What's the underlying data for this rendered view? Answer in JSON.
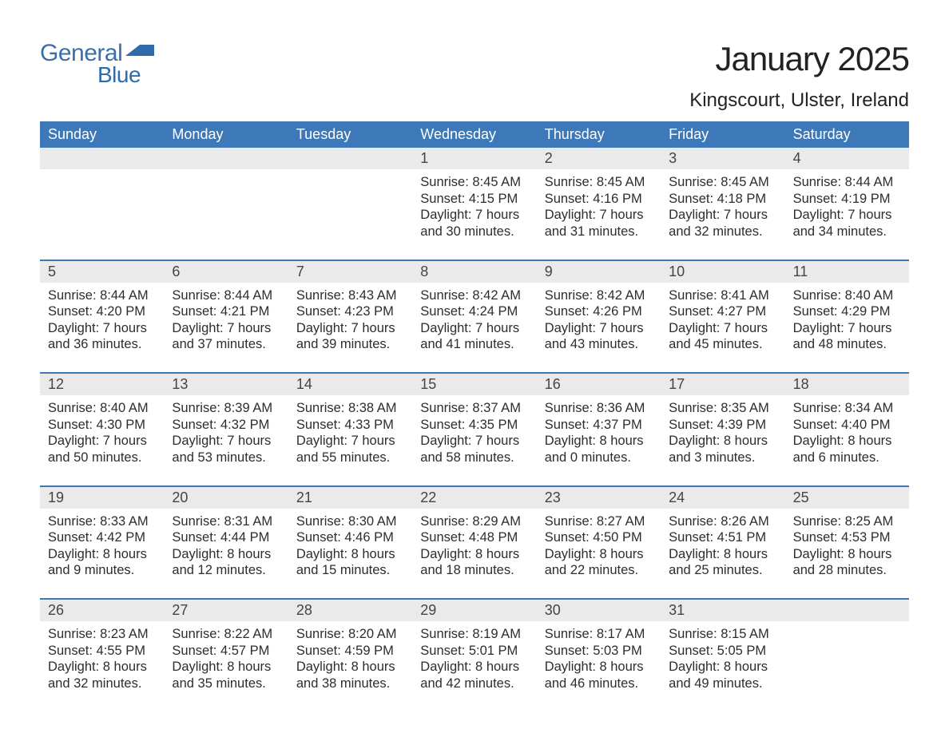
{
  "brand": {
    "word1": "General",
    "word2": "Blue"
  },
  "title": "January 2025",
  "location": "Kingscourt, Ulster, Ireland",
  "colors": {
    "header_bg": "#3d78b8",
    "divider": "#3d78b8",
    "date_row_bg": "#eaeaea",
    "text": "#2d2d2d",
    "brand_color": "#2f6aab"
  },
  "day_names": [
    "Sunday",
    "Monday",
    "Tuesday",
    "Wednesday",
    "Thursday",
    "Friday",
    "Saturday"
  ],
  "weeks": [
    [
      null,
      null,
      null,
      {
        "date": "1",
        "sunrise": "Sunrise: 8:45 AM",
        "sunset": "Sunset: 4:15 PM",
        "dl1": "Daylight: 7 hours",
        "dl2": "and 30 minutes."
      },
      {
        "date": "2",
        "sunrise": "Sunrise: 8:45 AM",
        "sunset": "Sunset: 4:16 PM",
        "dl1": "Daylight: 7 hours",
        "dl2": "and 31 minutes."
      },
      {
        "date": "3",
        "sunrise": "Sunrise: 8:45 AM",
        "sunset": "Sunset: 4:18 PM",
        "dl1": "Daylight: 7 hours",
        "dl2": "and 32 minutes."
      },
      {
        "date": "4",
        "sunrise": "Sunrise: 8:44 AM",
        "sunset": "Sunset: 4:19 PM",
        "dl1": "Daylight: 7 hours",
        "dl2": "and 34 minutes."
      }
    ],
    [
      {
        "date": "5",
        "sunrise": "Sunrise: 8:44 AM",
        "sunset": "Sunset: 4:20 PM",
        "dl1": "Daylight: 7 hours",
        "dl2": "and 36 minutes."
      },
      {
        "date": "6",
        "sunrise": "Sunrise: 8:44 AM",
        "sunset": "Sunset: 4:21 PM",
        "dl1": "Daylight: 7 hours",
        "dl2": "and 37 minutes."
      },
      {
        "date": "7",
        "sunrise": "Sunrise: 8:43 AM",
        "sunset": "Sunset: 4:23 PM",
        "dl1": "Daylight: 7 hours",
        "dl2": "and 39 minutes."
      },
      {
        "date": "8",
        "sunrise": "Sunrise: 8:42 AM",
        "sunset": "Sunset: 4:24 PM",
        "dl1": "Daylight: 7 hours",
        "dl2": "and 41 minutes."
      },
      {
        "date": "9",
        "sunrise": "Sunrise: 8:42 AM",
        "sunset": "Sunset: 4:26 PM",
        "dl1": "Daylight: 7 hours",
        "dl2": "and 43 minutes."
      },
      {
        "date": "10",
        "sunrise": "Sunrise: 8:41 AM",
        "sunset": "Sunset: 4:27 PM",
        "dl1": "Daylight: 7 hours",
        "dl2": "and 45 minutes."
      },
      {
        "date": "11",
        "sunrise": "Sunrise: 8:40 AM",
        "sunset": "Sunset: 4:29 PM",
        "dl1": "Daylight: 7 hours",
        "dl2": "and 48 minutes."
      }
    ],
    [
      {
        "date": "12",
        "sunrise": "Sunrise: 8:40 AM",
        "sunset": "Sunset: 4:30 PM",
        "dl1": "Daylight: 7 hours",
        "dl2": "and 50 minutes."
      },
      {
        "date": "13",
        "sunrise": "Sunrise: 8:39 AM",
        "sunset": "Sunset: 4:32 PM",
        "dl1": "Daylight: 7 hours",
        "dl2": "and 53 minutes."
      },
      {
        "date": "14",
        "sunrise": "Sunrise: 8:38 AM",
        "sunset": "Sunset: 4:33 PM",
        "dl1": "Daylight: 7 hours",
        "dl2": "and 55 minutes."
      },
      {
        "date": "15",
        "sunrise": "Sunrise: 8:37 AM",
        "sunset": "Sunset: 4:35 PM",
        "dl1": "Daylight: 7 hours",
        "dl2": "and 58 minutes."
      },
      {
        "date": "16",
        "sunrise": "Sunrise: 8:36 AM",
        "sunset": "Sunset: 4:37 PM",
        "dl1": "Daylight: 8 hours",
        "dl2": "and 0 minutes."
      },
      {
        "date": "17",
        "sunrise": "Sunrise: 8:35 AM",
        "sunset": "Sunset: 4:39 PM",
        "dl1": "Daylight: 8 hours",
        "dl2": "and 3 minutes."
      },
      {
        "date": "18",
        "sunrise": "Sunrise: 8:34 AM",
        "sunset": "Sunset: 4:40 PM",
        "dl1": "Daylight: 8 hours",
        "dl2": "and 6 minutes."
      }
    ],
    [
      {
        "date": "19",
        "sunrise": "Sunrise: 8:33 AM",
        "sunset": "Sunset: 4:42 PM",
        "dl1": "Daylight: 8 hours",
        "dl2": "and 9 minutes."
      },
      {
        "date": "20",
        "sunrise": "Sunrise: 8:31 AM",
        "sunset": "Sunset: 4:44 PM",
        "dl1": "Daylight: 8 hours",
        "dl2": "and 12 minutes."
      },
      {
        "date": "21",
        "sunrise": "Sunrise: 8:30 AM",
        "sunset": "Sunset: 4:46 PM",
        "dl1": "Daylight: 8 hours",
        "dl2": "and 15 minutes."
      },
      {
        "date": "22",
        "sunrise": "Sunrise: 8:29 AM",
        "sunset": "Sunset: 4:48 PM",
        "dl1": "Daylight: 8 hours",
        "dl2": "and 18 minutes."
      },
      {
        "date": "23",
        "sunrise": "Sunrise: 8:27 AM",
        "sunset": "Sunset: 4:50 PM",
        "dl1": "Daylight: 8 hours",
        "dl2": "and 22 minutes."
      },
      {
        "date": "24",
        "sunrise": "Sunrise: 8:26 AM",
        "sunset": "Sunset: 4:51 PM",
        "dl1": "Daylight: 8 hours",
        "dl2": "and 25 minutes."
      },
      {
        "date": "25",
        "sunrise": "Sunrise: 8:25 AM",
        "sunset": "Sunset: 4:53 PM",
        "dl1": "Daylight: 8 hours",
        "dl2": "and 28 minutes."
      }
    ],
    [
      {
        "date": "26",
        "sunrise": "Sunrise: 8:23 AM",
        "sunset": "Sunset: 4:55 PM",
        "dl1": "Daylight: 8 hours",
        "dl2": "and 32 minutes."
      },
      {
        "date": "27",
        "sunrise": "Sunrise: 8:22 AM",
        "sunset": "Sunset: 4:57 PM",
        "dl1": "Daylight: 8 hours",
        "dl2": "and 35 minutes."
      },
      {
        "date": "28",
        "sunrise": "Sunrise: 8:20 AM",
        "sunset": "Sunset: 4:59 PM",
        "dl1": "Daylight: 8 hours",
        "dl2": "and 38 minutes."
      },
      {
        "date": "29",
        "sunrise": "Sunrise: 8:19 AM",
        "sunset": "Sunset: 5:01 PM",
        "dl1": "Daylight: 8 hours",
        "dl2": "and 42 minutes."
      },
      {
        "date": "30",
        "sunrise": "Sunrise: 8:17 AM",
        "sunset": "Sunset: 5:03 PM",
        "dl1": "Daylight: 8 hours",
        "dl2": "and 46 minutes."
      },
      {
        "date": "31",
        "sunrise": "Sunrise: 8:15 AM",
        "sunset": "Sunset: 5:05 PM",
        "dl1": "Daylight: 8 hours",
        "dl2": "and 49 minutes."
      },
      null
    ]
  ]
}
